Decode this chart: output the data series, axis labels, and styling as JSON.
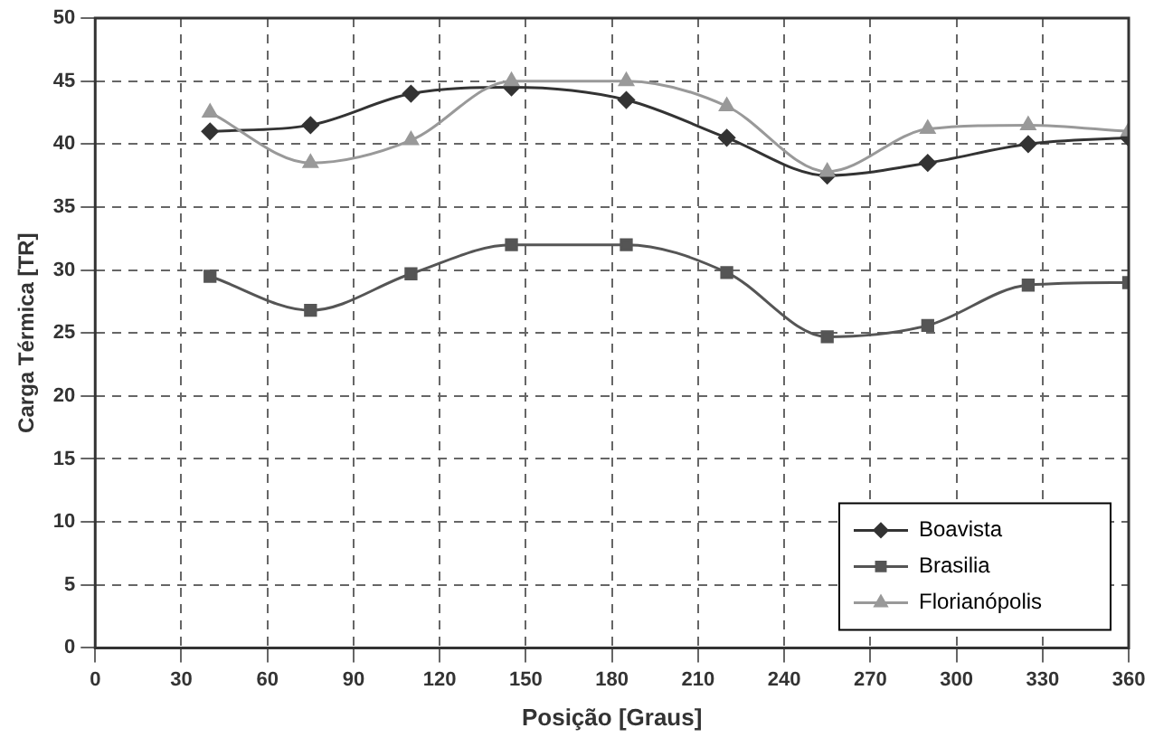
{
  "chart_data": {
    "type": "line",
    "xlabel": "Posição [Graus]",
    "ylabel": "Carga Térmica [TR]",
    "x": [
      40,
      75,
      110,
      145,
      185,
      220,
      255,
      290,
      325,
      360
    ],
    "series": [
      {
        "name": "Boavista",
        "color": "#333333",
        "marker": "diamond",
        "values": [
          41,
          41.5,
          44,
          44.5,
          43.5,
          40.5,
          37.5,
          38.5,
          40,
          40.5
        ]
      },
      {
        "name": "Brasilia",
        "color": "#555555",
        "marker": "square",
        "values": [
          29.5,
          26.8,
          29.7,
          32,
          32,
          29.8,
          24.7,
          25.6,
          28.8,
          29
        ]
      },
      {
        "name": "Florianópolis",
        "color": "#999999",
        "marker": "triangle",
        "values": [
          42.5,
          38.5,
          40.3,
          45,
          45,
          43,
          37.8,
          41.2,
          41.5,
          41
        ]
      }
    ],
    "xlim": [
      0,
      360
    ],
    "xticks": [
      0,
      30,
      60,
      90,
      120,
      150,
      180,
      210,
      240,
      270,
      300,
      330,
      360
    ],
    "ylim": [
      0,
      50
    ],
    "yticks": [
      0,
      5,
      10,
      15,
      20,
      25,
      30,
      35,
      40,
      45,
      50
    ],
    "grid": true,
    "line_style": "solid",
    "legend": "bottom right"
  }
}
